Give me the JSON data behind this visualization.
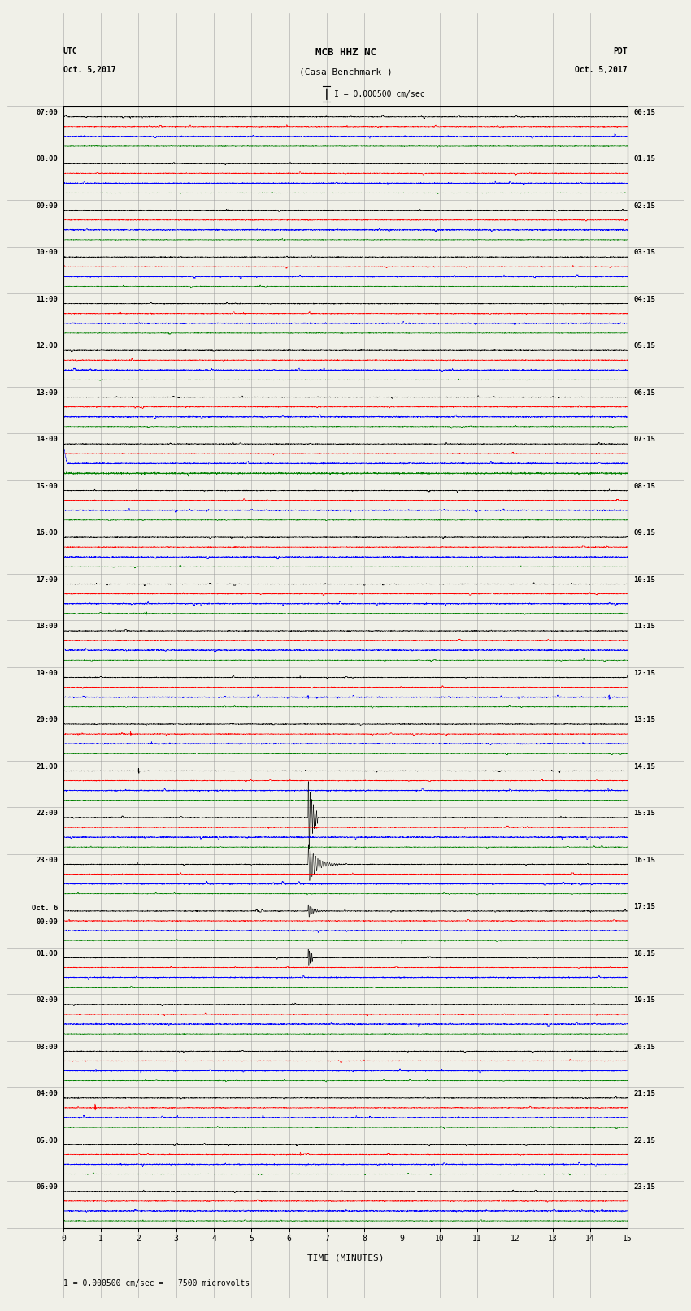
{
  "title_line1": "MCB HHZ NC",
  "title_line2": "(Casa Benchmark )",
  "title_line3": "I = 0.000500 cm/sec",
  "left_header_top": "UTC",
  "left_header_bot": "Oct. 5,2017",
  "right_header_top": "PDT",
  "right_header_bot": "Oct. 5,2017",
  "xlabel": "TIME (MINUTES)",
  "footer_text": "1 = 0.000500 cm/sec =   7500 microvolts",
  "utc_times": [
    "07:00",
    "08:00",
    "09:00",
    "10:00",
    "11:00",
    "12:00",
    "13:00",
    "14:00",
    "15:00",
    "16:00",
    "17:00",
    "18:00",
    "19:00",
    "20:00",
    "21:00",
    "22:00",
    "23:00",
    "Oct. 6\n00:00",
    "01:00",
    "02:00",
    "03:00",
    "04:00",
    "05:00",
    "06:00"
  ],
  "pdt_times": [
    "00:15",
    "01:15",
    "02:15",
    "03:15",
    "04:15",
    "05:15",
    "06:15",
    "07:15",
    "08:15",
    "09:15",
    "10:15",
    "11:15",
    "12:15",
    "13:15",
    "14:15",
    "15:15",
    "16:15",
    "17:15",
    "18:15",
    "19:15",
    "20:15",
    "21:15",
    "22:15",
    "23:15"
  ],
  "n_rows": 24,
  "n_traces_per_row": 4,
  "trace_colors": [
    "black",
    "red",
    "blue",
    "green"
  ],
  "minutes": 15,
  "fig_width": 8.5,
  "fig_height": 16.13,
  "bg_color": "#f0f0e8",
  "plot_bg": "#f0f0e8",
  "grid_color": "#999999",
  "noise_amplitude": 0.004,
  "xmin": 0,
  "xmax": 15
}
